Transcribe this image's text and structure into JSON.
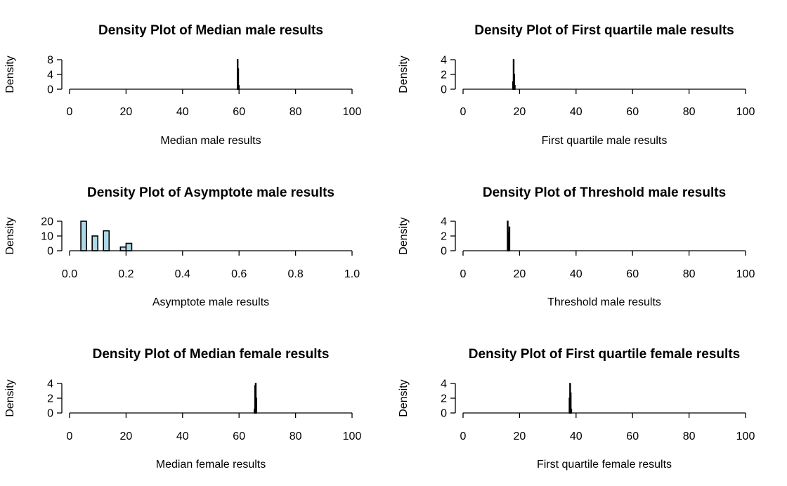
{
  "colors": {
    "bar_fill": "#ADD8E6",
    "bar_stroke": "#000000",
    "background": "#FFFFFF"
  },
  "chart_data": [
    {
      "type": "bar",
      "title": "Density Plot of Median male results",
      "xlabel": "Median male results",
      "ylabel": "Density",
      "xlim": [
        0,
        100
      ],
      "ylim": [
        0,
        8
      ],
      "xticks": [
        "0",
        "20",
        "40",
        "60",
        "80",
        "100"
      ],
      "yticks": [
        "0",
        "4",
        "8"
      ],
      "bars": [
        {
          "x0": 59.4,
          "x1": 59.6,
          "density": 8.0
        },
        {
          "x0": 59.6,
          "x1": 59.8,
          "density": 5.5
        },
        {
          "x0": 59.8,
          "x1": 60.0,
          "density": 1.0
        }
      ]
    },
    {
      "type": "bar",
      "title": "Density Plot of First quartile male results",
      "xlabel": "First quartile male results",
      "ylabel": "Density",
      "xlim": [
        0,
        100
      ],
      "ylim": [
        0,
        4
      ],
      "xticks": [
        "0",
        "20",
        "40",
        "60",
        "80",
        "100"
      ],
      "yticks": [
        "0",
        "2",
        "4"
      ],
      "bars": [
        {
          "x0": 17.6,
          "x1": 17.8,
          "density": 1.0
        },
        {
          "x0": 17.8,
          "x1": 18.0,
          "density": 4.0
        },
        {
          "x0": 18.0,
          "x1": 18.2,
          "density": 2.0
        },
        {
          "x0": 18.2,
          "x1": 18.4,
          "density": 0.5
        }
      ]
    },
    {
      "type": "bar",
      "title": "Density Plot of Asymptote male results",
      "xlabel": "Asymptote male results",
      "ylabel": "Density",
      "xlim": [
        0,
        1
      ],
      "ylim": [
        0,
        20
      ],
      "xticks": [
        "0.0",
        "0.2",
        "0.4",
        "0.6",
        "0.8",
        "1.0"
      ],
      "yticks": [
        "0",
        "10",
        "20"
      ],
      "bars": [
        {
          "x0": 0.04,
          "x1": 0.06,
          "density": 20
        },
        {
          "x0": 0.06,
          "x1": 0.08,
          "density": 0
        },
        {
          "x0": 0.08,
          "x1": 0.1,
          "density": 10
        },
        {
          "x0": 0.1,
          "x1": 0.12,
          "density": 0
        },
        {
          "x0": 0.12,
          "x1": 0.14,
          "density": 13.5
        },
        {
          "x0": 0.14,
          "x1": 0.16,
          "density": 0
        },
        {
          "x0": 0.16,
          "x1": 0.18,
          "density": 0
        },
        {
          "x0": 0.18,
          "x1": 0.2,
          "density": 2.5
        },
        {
          "x0": 0.2,
          "x1": 0.22,
          "density": 5
        }
      ]
    },
    {
      "type": "bar",
      "title": "Density Plot of Threshold male results",
      "xlabel": "Threshold male results",
      "ylabel": "Density",
      "xlim": [
        0,
        100
      ],
      "ylim": [
        0,
        4
      ],
      "xticks": [
        "0",
        "20",
        "40",
        "60",
        "80",
        "100"
      ],
      "yticks": [
        "0",
        "2",
        "4"
      ],
      "bars": [
        {
          "x0": 15.7,
          "x1": 15.9,
          "density": 4.0
        },
        {
          "x0": 15.9,
          "x1": 16.1,
          "density": 2.5
        },
        {
          "x0": 16.1,
          "x1": 16.3,
          "density": 0.5
        },
        {
          "x0": 16.3,
          "x1": 16.5,
          "density": 3.2
        }
      ]
    },
    {
      "type": "bar",
      "title": "Density Plot of Median female results",
      "xlabel": "Median female results",
      "ylabel": "Density",
      "xlim": [
        0,
        100
      ],
      "ylim": [
        0,
        4
      ],
      "xticks": [
        "0",
        "20",
        "40",
        "60",
        "80",
        "100"
      ],
      "yticks": [
        "0",
        "2",
        "4"
      ],
      "bars": [
        {
          "x0": 65.4,
          "x1": 65.6,
          "density": 0.5
        },
        {
          "x0": 65.6,
          "x1": 65.8,
          "density": 3.7
        },
        {
          "x0": 65.8,
          "x1": 66.0,
          "density": 4.0
        },
        {
          "x0": 66.0,
          "x1": 66.2,
          "density": 2.0
        }
      ]
    },
    {
      "type": "bar",
      "title": "Density Plot of First quartile female results",
      "xlabel": "First quartile female results",
      "ylabel": "Density",
      "xlim": [
        0,
        100
      ],
      "ylim": [
        0,
        4
      ],
      "xticks": [
        "0",
        "20",
        "40",
        "60",
        "80",
        "100"
      ],
      "yticks": [
        "0",
        "2",
        "4"
      ],
      "bars": [
        {
          "x0": 37.6,
          "x1": 37.8,
          "density": 2.0
        },
        {
          "x0": 37.8,
          "x1": 38.0,
          "density": 4.0
        },
        {
          "x0": 38.0,
          "x1": 38.2,
          "density": 2.7
        },
        {
          "x0": 38.2,
          "x1": 38.4,
          "density": 0.5
        }
      ]
    }
  ]
}
